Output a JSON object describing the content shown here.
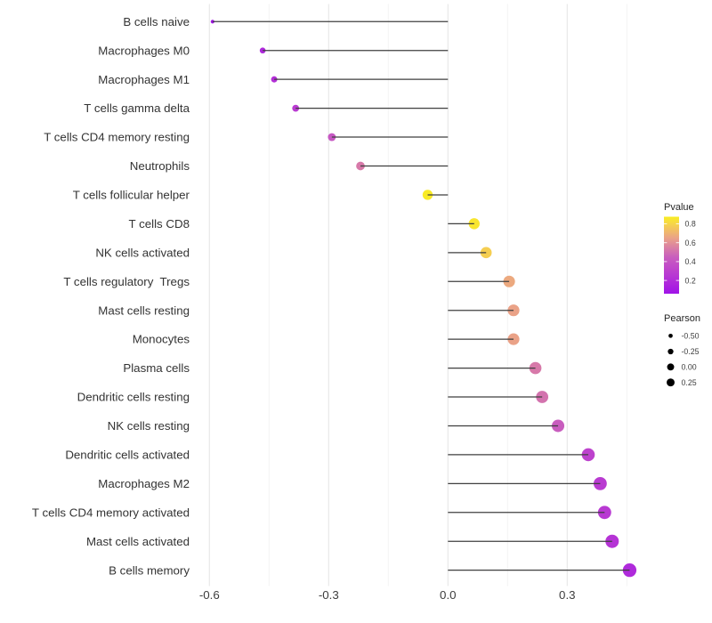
{
  "chart_data": {
    "type": "lollipop",
    "title": "",
    "xlabel": "",
    "ylabel": "",
    "grid": "on",
    "legend_position": "right",
    "xlim": [
      -0.634,
      0.507
    ],
    "x_axis": {
      "tick_labels": [
        "-0.6",
        "-0.3",
        "0.0",
        "0.3"
      ],
      "tick_values": [
        -0.6,
        -0.3,
        0.0,
        0.3
      ],
      "minor_tick_values": [
        -0.45,
        -0.15,
        0.15,
        0.45
      ]
    },
    "categories": [
      "B cells naive",
      "Macrophages M0",
      "Macrophages M1",
      "T cells gamma delta",
      "T cells CD4 memory resting",
      "Neutrophils",
      "T cells follicular helper",
      "T cells CD8",
      "NK cells activated",
      "T cells regulatory  Tregs",
      "Mast cells resting",
      "Monocytes",
      "Plasma cells",
      "Dendritic cells resting",
      "NK cells resting",
      "Dendritic cells activated",
      "Macrophages M2",
      "T cells CD4 memory activated",
      "Mast cells activated",
      "B cells memory"
    ],
    "series": [
      {
        "name": "Pearson",
        "values": [
          -0.592,
          -0.466,
          -0.437,
          -0.383,
          -0.292,
          -0.22,
          -0.051,
          0.066,
          0.096,
          0.154,
          0.165,
          0.165,
          0.22,
          0.237,
          0.277,
          0.353,
          0.383,
          0.394,
          0.413,
          0.457
        ]
      },
      {
        "name": "Pvalue",
        "values": [
          0.07,
          0.17,
          0.21,
          0.27,
          0.41,
          0.53,
          0.87,
          0.85,
          0.78,
          0.67,
          0.65,
          0.65,
          0.53,
          0.51,
          0.44,
          0.31,
          0.27,
          0.26,
          0.23,
          0.18
        ]
      }
    ]
  },
  "legend": {
    "pvalue": {
      "title": "Pvalue",
      "tick_labels": [
        "0.8",
        "0.6",
        "0.4",
        "0.2"
      ],
      "tick_values": [
        0.8,
        0.6,
        0.4,
        0.2
      ],
      "domain_top": 0.875,
      "domain_bottom": 0.06
    },
    "pearson": {
      "title": "Pearson",
      "labels": [
        "-0.50",
        "-0.25",
        "0.00",
        "0.25"
      ],
      "values": [
        -0.5,
        -0.25,
        0.0,
        0.25
      ],
      "dot_diameters": [
        4.7,
        6.3,
        7.9,
        8.9
      ]
    }
  },
  "colors": {
    "background": "#FFFFFF",
    "stem": "#3F3F3F",
    "grid_major": "#E7E7E7",
    "grid_minor": "#F2F2F2",
    "axis_tick_text": "#3D3D3D",
    "category_text": "#333333",
    "legend_title_text": "#262626",
    "legend_label_text": "#3D3D3D",
    "legend_dot": "#000000",
    "colormap_stops": [
      [
        0.06,
        "#A013E8"
      ],
      [
        0.15,
        "#AC24DE"
      ],
      [
        0.25,
        "#B737D3"
      ],
      [
        0.35,
        "#C14AC9"
      ],
      [
        0.45,
        "#C95FBD"
      ],
      [
        0.55,
        "#DA80A4"
      ],
      [
        0.65,
        "#EAA287"
      ],
      [
        0.73,
        "#F1BD66"
      ],
      [
        0.8,
        "#F6D549"
      ],
      [
        0.875,
        "#F9ED22"
      ]
    ]
  }
}
